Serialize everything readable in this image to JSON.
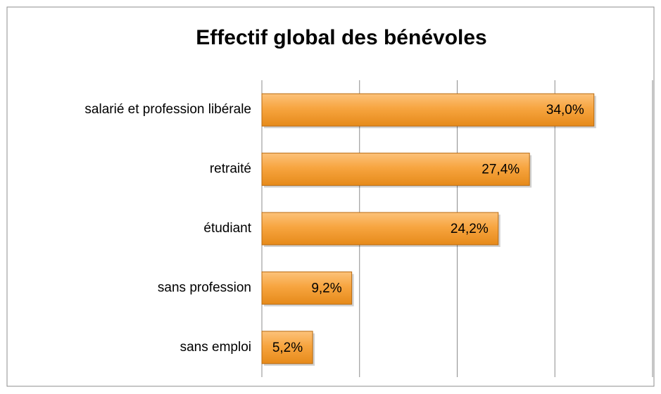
{
  "chart_data": {
    "type": "bar",
    "orientation": "horizontal",
    "title": "Effectif global des bénévoles",
    "categories": [
      "salarié et profession libérale",
      "retraité",
      "étudiant",
      "sans profession",
      "sans emploi"
    ],
    "values": [
      34.0,
      27.4,
      24.2,
      9.2,
      5.2
    ],
    "value_labels": [
      "34,0%",
      "27,4%",
      "24,2%",
      "9,2%",
      "5,2%"
    ],
    "color": "#f5a43a",
    "xlim": [
      0,
      40
    ],
    "xticks": [
      0,
      10,
      20,
      30,
      40
    ],
    "grid": true
  }
}
